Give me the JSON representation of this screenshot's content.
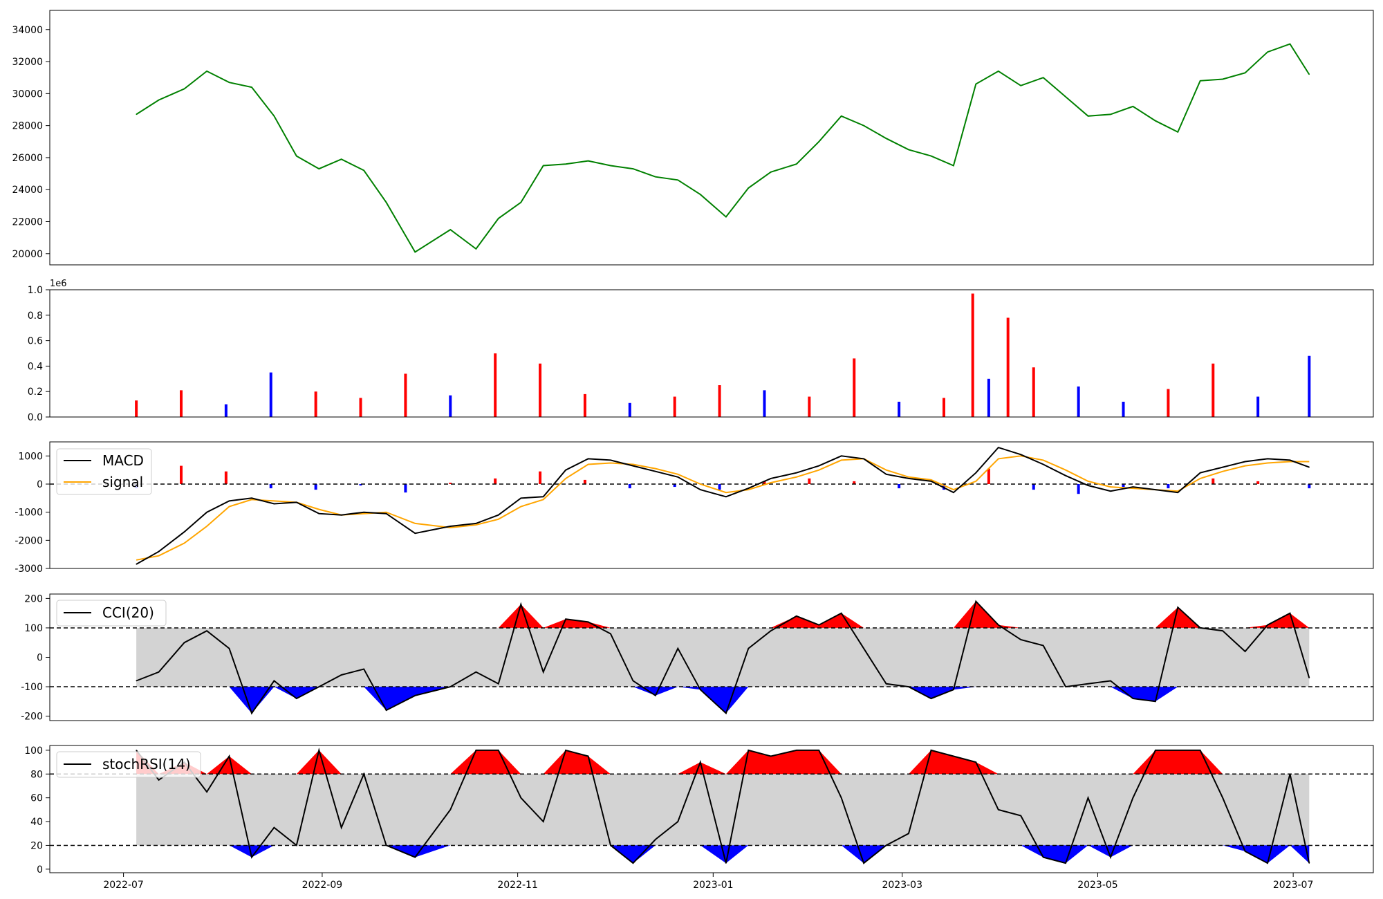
{
  "chart_data": [
    {
      "type": "line",
      "panel": "price",
      "x_range": [
        "2022-06-08",
        "2023-07-26"
      ],
      "ylim": [
        19300,
        35200
      ],
      "yticks": [
        20000,
        22000,
        24000,
        26000,
        28000,
        30000,
        32000,
        34000
      ],
      "color": "#008000",
      "series": [
        {
          "x": [
            "2022-07-05",
            "2022-07-12",
            "2022-07-20",
            "2022-07-27",
            "2022-08-03",
            "2022-08-10",
            "2022-08-17",
            "2022-08-24",
            "2022-08-31",
            "2022-09-07",
            "2022-09-14",
            "2022-09-21",
            "2022-09-30",
            "2022-10-11",
            "2022-10-19",
            "2022-10-26",
            "2022-11-02",
            "2022-11-09",
            "2022-11-16",
            "2022-11-23",
            "2022-11-30",
            "2022-12-07",
            "2022-12-14",
            "2022-12-21",
            "2022-12-28",
            "2023-01-05",
            "2023-01-12",
            "2023-01-19",
            "2023-01-27",
            "2023-02-03",
            "2023-02-10",
            "2023-02-17",
            "2023-02-24",
            "2023-03-03",
            "2023-03-10",
            "2023-03-17",
            "2023-03-24",
            "2023-03-31",
            "2023-04-07",
            "2023-04-14",
            "2023-04-21",
            "2023-04-28",
            "2023-05-05",
            "2023-05-12",
            "2023-05-19",
            "2023-05-26",
            "2023-06-02",
            "2023-06-09",
            "2023-06-16",
            "2023-06-23",
            "2023-06-30",
            "2023-07-06"
          ],
          "y": [
            28700,
            29600,
            30300,
            31400,
            30700,
            30400,
            28600,
            26100,
            25300,
            25900,
            25200,
            23200,
            20100,
            21500,
            20300,
            22200,
            23200,
            25500,
            25600,
            25800,
            25500,
            25300,
            24800,
            24600,
            23700,
            22300,
            24100,
            25100,
            25600,
            27000,
            28600,
            28000,
            27200,
            26500,
            26100,
            25500,
            30600,
            31400,
            30500,
            31000,
            29800,
            28600,
            28700,
            29200,
            28300,
            27600,
            30800,
            30900,
            31300,
            32600,
            33100,
            31200
          ]
        }
      ]
    },
    {
      "type": "bar",
      "panel": "volume",
      "ylim": [
        0,
        1.0
      ],
      "yticks": [
        0.0,
        0.2,
        0.4,
        0.6,
        0.8,
        1.0
      ],
      "offset_label": "1e6",
      "colors": {
        "up": "#ff0000",
        "down": "#0000ff",
        "flat": "#000000"
      },
      "series": [
        {
          "x": [
            "2022-07-05",
            "2022-07-19",
            "2022-08-02",
            "2022-08-16",
            "2022-08-30",
            "2022-09-13",
            "2022-09-27",
            "2022-10-11",
            "2022-10-25",
            "2022-11-08",
            "2022-11-22",
            "2022-12-06",
            "2022-12-20",
            "2023-01-03",
            "2023-01-17",
            "2023-01-31",
            "2023-02-14",
            "2023-02-28",
            "2023-03-14",
            "2023-03-23",
            "2023-03-28",
            "2023-04-03",
            "2023-04-11",
            "2023-04-25",
            "2023-05-09",
            "2023-05-23",
            "2023-06-06",
            "2023-06-20",
            "2023-07-06"
          ],
          "values": [
            0.13,
            0.21,
            0.1,
            0.35,
            0.2,
            0.15,
            0.34,
            0.17,
            0.5,
            0.42,
            0.18,
            0.11,
            0.16,
            0.25,
            0.21,
            0.16,
            0.46,
            0.12,
            0.15,
            0.97,
            0.3,
            0.78,
            0.39,
            0.24,
            0.12,
            0.22,
            0.42,
            0.16,
            0.48
          ],
          "direction": [
            "up",
            "up",
            "down",
            "down",
            "up",
            "up",
            "up",
            "down",
            "up",
            "up",
            "up",
            "down",
            "up",
            "up",
            "down",
            "up",
            "up",
            "down",
            "up",
            "up",
            "down",
            "up",
            "up",
            "down",
            "down",
            "up",
            "up",
            "down",
            "down"
          ]
        }
      ]
    },
    {
      "type": "line",
      "panel": "macd",
      "ylim": [
        -3000,
        1500
      ],
      "yticks": [
        -3000,
        -2000,
        -1000,
        0,
        1000
      ],
      "hline": 0,
      "legend": {
        "placement": "top-left",
        "entries": [
          "MACD",
          "signal"
        ]
      },
      "series": [
        {
          "name": "MACD",
          "color": "#000000",
          "x": [
            "2022-07-05",
            "2022-07-12",
            "2022-07-20",
            "2022-07-27",
            "2022-08-03",
            "2022-08-10",
            "2022-08-17",
            "2022-08-24",
            "2022-08-31",
            "2022-09-07",
            "2022-09-14",
            "2022-09-21",
            "2022-09-30",
            "2022-10-11",
            "2022-10-19",
            "2022-10-26",
            "2022-11-02",
            "2022-11-09",
            "2022-11-16",
            "2022-11-23",
            "2022-11-30",
            "2022-12-07",
            "2022-12-14",
            "2022-12-21",
            "2022-12-28",
            "2023-01-05",
            "2023-01-12",
            "2023-01-19",
            "2023-01-27",
            "2023-02-03",
            "2023-02-10",
            "2023-02-17",
            "2023-02-24",
            "2023-03-03",
            "2023-03-10",
            "2023-03-17",
            "2023-03-24",
            "2023-03-31",
            "2023-04-07",
            "2023-04-14",
            "2023-04-21",
            "2023-04-28",
            "2023-05-05",
            "2023-05-12",
            "2023-05-19",
            "2023-05-26",
            "2023-06-02",
            "2023-06-09",
            "2023-06-16",
            "2023-06-23",
            "2023-06-30",
            "2023-07-06"
          ],
          "y": [
            -2850,
            -2400,
            -1700,
            -1000,
            -600,
            -500,
            -700,
            -650,
            -1050,
            -1100,
            -1000,
            -1050,
            -1750,
            -1500,
            -1400,
            -1100,
            -500,
            -450,
            500,
            900,
            850,
            650,
            450,
            250,
            -200,
            -450,
            -150,
            200,
            400,
            650,
            1000,
            900,
            350,
            200,
            100,
            -300,
            400,
            1300,
            1050,
            700,
            300,
            -50,
            -250,
            -100,
            -200,
            -300,
            400,
            600,
            800,
            900,
            850,
            600
          ]
        },
        {
          "name": "signal",
          "color": "#ffa500",
          "x": [
            "2022-07-05",
            "2022-07-12",
            "2022-07-20",
            "2022-07-27",
            "2022-08-03",
            "2022-08-10",
            "2022-08-17",
            "2022-08-24",
            "2022-08-31",
            "2022-09-07",
            "2022-09-14",
            "2022-09-21",
            "2022-09-30",
            "2022-10-11",
            "2022-10-19",
            "2022-10-26",
            "2022-11-02",
            "2022-11-09",
            "2022-11-16",
            "2022-11-23",
            "2022-11-30",
            "2022-12-07",
            "2022-12-14",
            "2022-12-21",
            "2022-12-28",
            "2023-01-05",
            "2023-01-12",
            "2023-01-19",
            "2023-01-27",
            "2023-02-03",
            "2023-02-10",
            "2023-02-17",
            "2023-02-24",
            "2023-03-03",
            "2023-03-10",
            "2023-03-17",
            "2023-03-24",
            "2023-03-31",
            "2023-04-07",
            "2023-04-14",
            "2023-04-21",
            "2023-04-28",
            "2023-05-05",
            "2023-05-12",
            "2023-05-19",
            "2023-05-26",
            "2023-06-02",
            "2023-06-09",
            "2023-06-16",
            "2023-06-23",
            "2023-06-30",
            "2023-07-06"
          ],
          "y": [
            -2700,
            -2550,
            -2100,
            -1500,
            -800,
            -550,
            -600,
            -650,
            -900,
            -1100,
            -1050,
            -1000,
            -1400,
            -1550,
            -1450,
            -1250,
            -800,
            -550,
            200,
            700,
            750,
            700,
            550,
            350,
            0,
            -300,
            -200,
            50,
            250,
            500,
            850,
            900,
            500,
            250,
            150,
            -200,
            100,
            900,
            1000,
            850,
            500,
            100,
            -100,
            -150,
            -200,
            -250,
            200,
            450,
            650,
            750,
            800,
            800
          ]
        },
        {
          "name": "histogram",
          "color_pos": "#ff0000",
          "color_neg": "#0000ff",
          "x": [
            "2022-07-05",
            "2022-07-19",
            "2022-08-02",
            "2022-08-16",
            "2022-08-30",
            "2022-09-13",
            "2022-09-27",
            "2022-10-11",
            "2022-10-25",
            "2022-11-08",
            "2022-11-22",
            "2022-12-06",
            "2022-12-20",
            "2023-01-03",
            "2023-01-17",
            "2023-01-31",
            "2023-02-14",
            "2023-02-28",
            "2023-03-14",
            "2023-03-28",
            "2023-04-11",
            "2023-04-25",
            "2023-05-09",
            "2023-05-23",
            "2023-06-06",
            "2023-06-20",
            "2023-07-06"
          ],
          "y": [
            -150,
            650,
            450,
            -150,
            -200,
            -50,
            -300,
            50,
            200,
            450,
            150,
            -150,
            -100,
            -200,
            100,
            200,
            100,
            -150,
            -200,
            550,
            -200,
            -350,
            -100,
            -150,
            200,
            100,
            -150
          ]
        }
      ]
    },
    {
      "type": "line",
      "panel": "cci",
      "ylim": [
        -215,
        215
      ],
      "yticks": [
        -200,
        -100,
        0,
        100,
        200
      ],
      "hlines": [
        100,
        -100
      ],
      "band": [
        -100,
        100
      ],
      "fill": {
        "above": "#ff0000",
        "below": "#0000ff",
        "band": "#d3d3d3"
      },
      "legend": {
        "placement": "top-left",
        "entries": [
          "CCI(20)"
        ]
      },
      "series": [
        {
          "name": "CCI(20)",
          "color": "#000000",
          "x": [
            "2022-07-05",
            "2022-07-12",
            "2022-07-20",
            "2022-07-27",
            "2022-08-03",
            "2022-08-10",
            "2022-08-17",
            "2022-08-24",
            "2022-08-31",
            "2022-09-07",
            "2022-09-14",
            "2022-09-21",
            "2022-09-30",
            "2022-10-11",
            "2022-10-19",
            "2022-10-26",
            "2022-11-02",
            "2022-11-09",
            "2022-11-16",
            "2022-11-23",
            "2022-11-30",
            "2022-12-07",
            "2022-12-14",
            "2022-12-21",
            "2022-12-28",
            "2023-01-05",
            "2023-01-12",
            "2023-01-19",
            "2023-01-27",
            "2023-02-03",
            "2023-02-10",
            "2023-02-17",
            "2023-02-24",
            "2023-03-03",
            "2023-03-10",
            "2023-03-17",
            "2023-03-24",
            "2023-03-31",
            "2023-04-07",
            "2023-04-14",
            "2023-04-21",
            "2023-04-28",
            "2023-05-05",
            "2023-05-12",
            "2023-05-19",
            "2023-05-26",
            "2023-06-02",
            "2023-06-09",
            "2023-06-16",
            "2023-06-23",
            "2023-06-30",
            "2023-07-06"
          ],
          "y": [
            -80,
            -50,
            50,
            90,
            30,
            -190,
            -80,
            -140,
            -100,
            -60,
            -40,
            -180,
            -130,
            -100,
            -50,
            -90,
            180,
            -50,
            130,
            120,
            80,
            -80,
            -130,
            30,
            -110,
            -190,
            30,
            90,
            140,
            110,
            150,
            30,
            -90,
            -100,
            -140,
            -110,
            190,
            110,
            60,
            40,
            -100,
            -90,
            -80,
            -140,
            -150,
            170,
            100,
            90,
            20,
            110,
            150,
            -70
          ]
        }
      ]
    },
    {
      "type": "line",
      "panel": "stochrsi",
      "ylim": [
        -3,
        104
      ],
      "yticks": [
        0,
        20,
        40,
        60,
        80,
        100
      ],
      "hlines": [
        80,
        20
      ],
      "band": [
        20,
        80
      ],
      "fill": {
        "above": "#ff0000",
        "below": "#0000ff",
        "band": "#d3d3d3"
      },
      "legend": {
        "placement": "top-left",
        "entries": [
          "stochRSI(14)"
        ]
      },
      "x_range": [
        "2022-06-08",
        "2023-07-26"
      ],
      "xticks": [
        "2022-07",
        "2022-09",
        "2022-11",
        "2023-01",
        "2023-03",
        "2023-05",
        "2023-07"
      ],
      "series": [
        {
          "name": "stochRSI(14)",
          "color": "#000000",
          "x": [
            "2022-07-05",
            "2022-07-12",
            "2022-07-20",
            "2022-07-27",
            "2022-08-03",
            "2022-08-10",
            "2022-08-17",
            "2022-08-24",
            "2022-08-31",
            "2022-09-07",
            "2022-09-14",
            "2022-09-21",
            "2022-09-30",
            "2022-10-11",
            "2022-10-19",
            "2022-10-26",
            "2022-11-02",
            "2022-11-09",
            "2022-11-16",
            "2022-11-23",
            "2022-11-30",
            "2022-12-07",
            "2022-12-14",
            "2022-12-21",
            "2022-12-28",
            "2023-01-05",
            "2023-01-12",
            "2023-01-19",
            "2023-01-27",
            "2023-02-03",
            "2023-02-10",
            "2023-02-17",
            "2023-02-24",
            "2023-03-03",
            "2023-03-10",
            "2023-03-17",
            "2023-03-24",
            "2023-03-31",
            "2023-04-07",
            "2023-04-14",
            "2023-04-21",
            "2023-04-28",
            "2023-05-05",
            "2023-05-12",
            "2023-05-19",
            "2023-05-26",
            "2023-06-02",
            "2023-06-09",
            "2023-06-16",
            "2023-06-23",
            "2023-06-30",
            "2023-07-06"
          ],
          "y": [
            100,
            75,
            90,
            65,
            95,
            10,
            35,
            20,
            100,
            35,
            80,
            20,
            10,
            50,
            100,
            100,
            60,
            40,
            100,
            95,
            20,
            5,
            25,
            40,
            90,
            5,
            100,
            95,
            100,
            100,
            60,
            5,
            20,
            30,
            100,
            95,
            90,
            50,
            45,
            10,
            5,
            60,
            10,
            60,
            100,
            100,
            100,
            60,
            15,
            5,
            80,
            5
          ]
        }
      ]
    }
  ]
}
